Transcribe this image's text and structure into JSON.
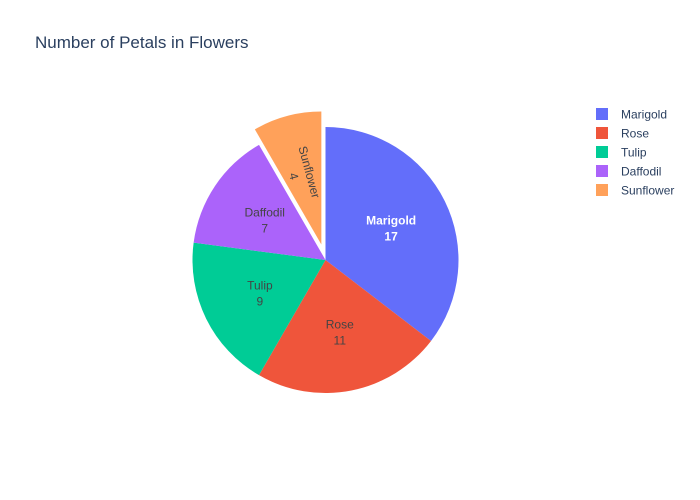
{
  "chart_data": {
    "type": "pie",
    "title": "Number of Petals in Flowers",
    "categories": [
      "Marigold",
      "Rose",
      "Tulip",
      "Daffodil",
      "Sunflower"
    ],
    "values": [
      17,
      11,
      9,
      7,
      4
    ],
    "colors": [
      "#636efa",
      "#ef553b",
      "#00cc96",
      "#ab63fa",
      "#ffa15a"
    ],
    "pulled": [
      "Sunflower"
    ],
    "legend_position": "top-right",
    "show_labels": "label+value"
  }
}
